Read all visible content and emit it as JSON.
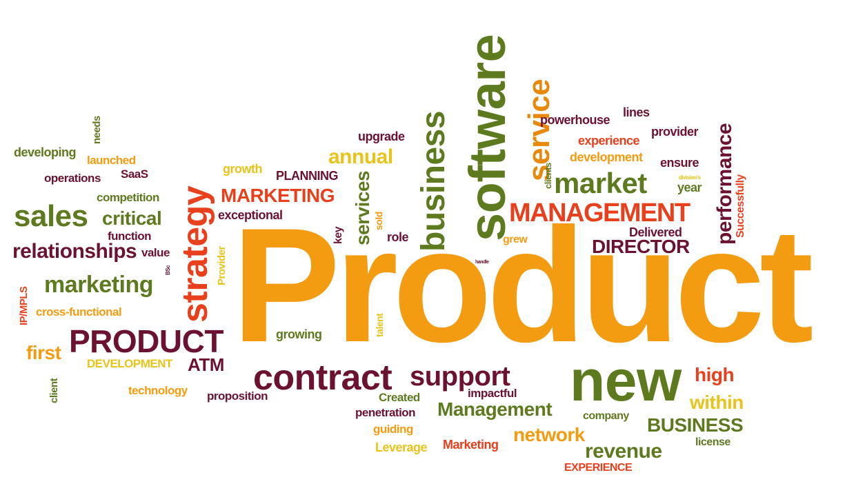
{
  "colors": {
    "orange": "#f39c12",
    "dark_orange": "#e8890c",
    "red": "#e8401c",
    "maroon": "#6b1131",
    "olive": "#5e7a1f",
    "yellow": "#e8c41a"
  },
  "words": [
    {
      "text": "Product",
      "color": "orange"
    },
    {
      "text": "software",
      "color": "olive"
    },
    {
      "text": "new",
      "color": "olive"
    },
    {
      "text": "strategy",
      "color": "red"
    },
    {
      "text": "PRODUCT",
      "color": "maroon"
    },
    {
      "text": "contract",
      "color": "maroon"
    },
    {
      "text": "business",
      "color": "olive"
    },
    {
      "text": "service",
      "color": "dark_orange"
    },
    {
      "text": "market",
      "color": "olive"
    },
    {
      "text": "MANAGEMENT",
      "color": "red"
    },
    {
      "text": "sales",
      "color": "olive"
    },
    {
      "text": "marketing",
      "color": "olive"
    },
    {
      "text": "relationships",
      "color": "maroon"
    },
    {
      "text": "support",
      "color": "maroon"
    },
    {
      "text": "MARKETING",
      "color": "red"
    },
    {
      "text": "performance",
      "color": "maroon"
    },
    {
      "text": "DIRECTOR",
      "color": "maroon"
    },
    {
      "text": "Management",
      "color": "olive"
    },
    {
      "text": "network",
      "color": "orange"
    },
    {
      "text": "revenue",
      "color": "olive"
    },
    {
      "text": "BUSINESS",
      "color": "olive"
    },
    {
      "text": "critical",
      "color": "olive"
    },
    {
      "text": "high",
      "color": "red"
    },
    {
      "text": "within",
      "color": "yellow"
    },
    {
      "text": "annual",
      "color": "yellow"
    },
    {
      "text": "services",
      "color": "olive"
    },
    {
      "text": "ATM",
      "color": "maroon"
    },
    {
      "text": "first",
      "color": "orange"
    },
    {
      "text": "growing",
      "color": "olive"
    },
    {
      "text": "exceptional",
      "color": "maroon"
    },
    {
      "text": "PLANNING",
      "color": "maroon"
    },
    {
      "text": "upgrade",
      "color": "maroon"
    },
    {
      "text": "powerhouse",
      "color": "maroon"
    },
    {
      "text": "lines",
      "color": "maroon"
    },
    {
      "text": "provider",
      "color": "maroon"
    },
    {
      "text": "experience",
      "color": "red"
    },
    {
      "text": "development",
      "color": "orange"
    },
    {
      "text": "ensure",
      "color": "maroon"
    },
    {
      "text": "year",
      "color": "olive"
    },
    {
      "text": "division's",
      "color": "yellow"
    },
    {
      "text": "Successfully",
      "color": "red"
    },
    {
      "text": "Delivered",
      "color": "maroon"
    },
    {
      "text": "grew",
      "color": "orange"
    },
    {
      "text": "handle",
      "color": "maroon"
    },
    {
      "text": "clients",
      "color": "olive"
    },
    {
      "text": "role",
      "color": "maroon"
    },
    {
      "text": "key",
      "color": "maroon"
    },
    {
      "text": "sold",
      "color": "orange"
    },
    {
      "text": "growth",
      "color": "yellow"
    },
    {
      "text": "competition",
      "color": "olive"
    },
    {
      "text": "function",
      "color": "maroon"
    },
    {
      "text": "value",
      "color": "maroon"
    },
    {
      "text": "BSc",
      "color": "maroon"
    },
    {
      "text": "Provider",
      "color": "yellow"
    },
    {
      "text": "IP/MPLS",
      "color": "red"
    },
    {
      "text": "cross-functional",
      "color": "orange"
    },
    {
      "text": "DEVELOPMENT",
      "color": "yellow"
    },
    {
      "text": "client",
      "color": "olive"
    },
    {
      "text": "technology",
      "color": "orange"
    },
    {
      "text": "proposition",
      "color": "maroon"
    },
    {
      "text": "talent",
      "color": "yellow"
    },
    {
      "text": "Created",
      "color": "olive"
    },
    {
      "text": "impactful",
      "color": "maroon"
    },
    {
      "text": "penetration",
      "color": "maroon"
    },
    {
      "text": "guiding",
      "color": "orange"
    },
    {
      "text": "Leverage",
      "color": "yellow"
    },
    {
      "text": "Marketing",
      "color": "red"
    },
    {
      "text": "company",
      "color": "olive"
    },
    {
      "text": "license",
      "color": "olive"
    },
    {
      "text": "EXPERIENCE",
      "color": "red"
    },
    {
      "text": "developing",
      "color": "olive"
    },
    {
      "text": "needs",
      "color": "olive"
    },
    {
      "text": "launched",
      "color": "orange"
    },
    {
      "text": "operations",
      "color": "maroon"
    },
    {
      "text": "SaaS",
      "color": "maroon"
    }
  ]
}
